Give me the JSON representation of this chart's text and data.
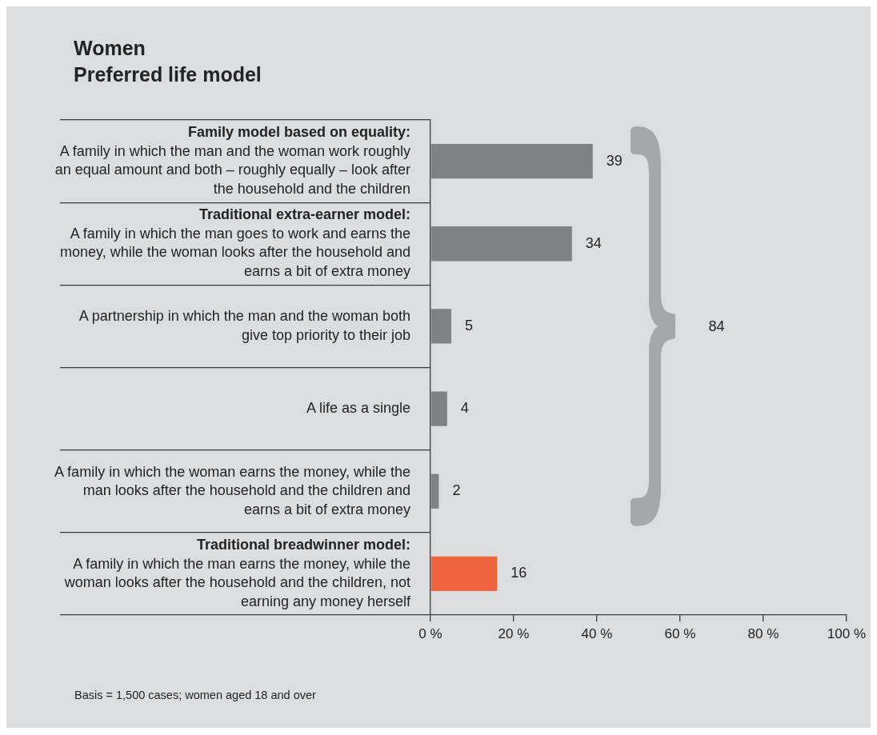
{
  "chart_data": {
    "type": "bar",
    "orientation": "horizontal",
    "title": "Women",
    "subtitle": "Preferred life model",
    "categories": [
      "Family model based on equality: A family in which the man and the woman work roughly an equal amount and both – roughly equally – look after the household and the children",
      "Traditional extra-earner model: A family in which the man goes to work and earns the money, while the woman looks after the household and earns a bit of extra money",
      "A partnership in which the man and the woman both give top priority to their job",
      "A life as a single",
      "A family in which the woman earns the money, while the man looks after the household and the children and earns a bit of extra money",
      "Traditional breadwinner model: A family in which the man earns the money, while the woman looks after the household and the children, not earning any money herself"
    ],
    "values": [
      39,
      34,
      5,
      4,
      2,
      16
    ],
    "colors": [
      "#808184",
      "#808184",
      "#808184",
      "#808184",
      "#808184",
      "#f16440"
    ],
    "xlim": [
      0,
      100
    ],
    "xticks": [
      {
        "value": 0,
        "label": "0 %"
      },
      {
        "value": 20,
        "label": "20 %"
      },
      {
        "value": 40,
        "label": "40 %"
      },
      {
        "value": 60,
        "label": "60 %"
      },
      {
        "value": 80,
        "label": "80 %"
      },
      {
        "value": 100,
        "label": "100 %"
      }
    ],
    "data_labels": true,
    "grid": false,
    "legend": false,
    "annotations": [
      "84",
      "Basis = 1,500 cases; women aged 18 and over"
    ]
  }
}
